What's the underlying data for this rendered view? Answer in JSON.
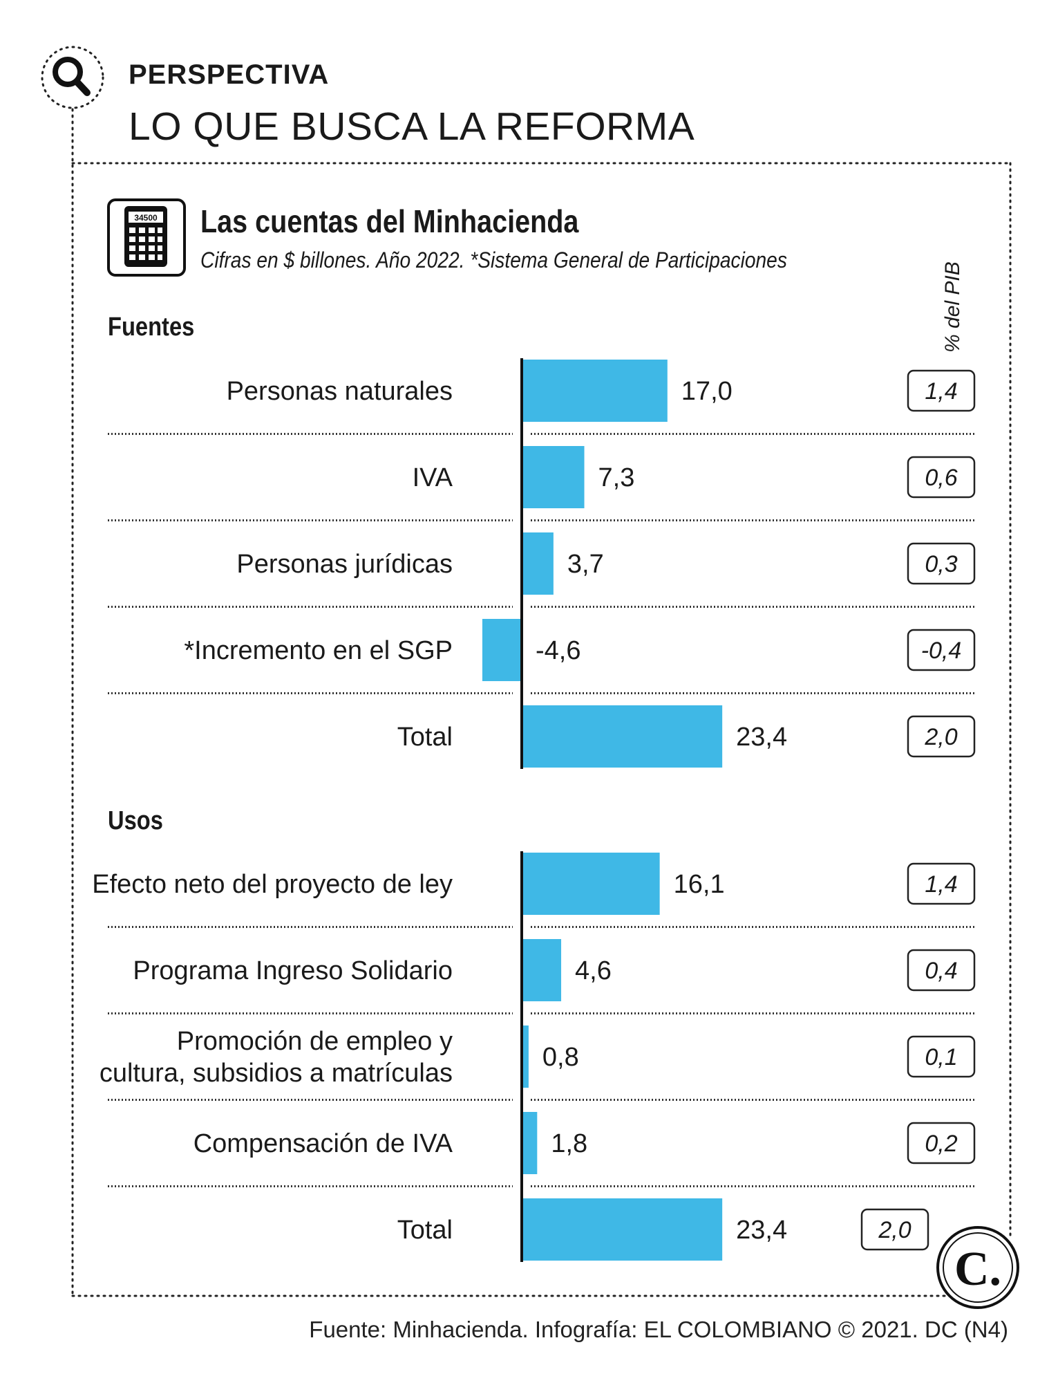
{
  "header": {
    "kicker": "PERSPECTIVA",
    "headline": "LO QUE BUSCA LA REFORMA"
  },
  "card": {
    "title": "Las cuentas del Minhacienda",
    "subtitle": "Cifras en $ billones. Año 2022.  *Sistema General de Participaciones",
    "calculator_display": "34500",
    "pib_header": "% del PIB"
  },
  "colors": {
    "bar": "#3fb8e6",
    "negative_text": "#d0262a",
    "text": "#1a1a1a",
    "frame": "#222222"
  },
  "chart_data": {
    "type": "bar",
    "orientation": "horizontal",
    "title": "Las cuentas del Minhacienda",
    "unit": "$ billones",
    "groups": [
      {
        "name": "Fuentes",
        "categories": [
          "Personas naturales",
          "IVA",
          "Personas jurídicas",
          "*Incremento en el SGP",
          "Total"
        ],
        "values": [
          17.0,
          7.3,
          3.7,
          -4.6,
          23.4
        ],
        "value_labels": [
          "17,0",
          "7,3",
          "3,7",
          "-4,6",
          "23,4"
        ],
        "pib_percent": [
          "1,4",
          "0,6",
          "0,3",
          "-0,4",
          "2,0"
        ]
      },
      {
        "name": "Usos",
        "categories": [
          "Efecto neto del proyecto de ley",
          "Programa Ingreso Solidario",
          "Promoción de empleo y\ncultura, subsidios a matrículas",
          "Compensación de IVA",
          "Total"
        ],
        "values": [
          16.1,
          4.6,
          0.8,
          1.8,
          23.4
        ],
        "value_labels": [
          "16,1",
          "4,6",
          "0,8",
          "1,8",
          "23,4"
        ],
        "pib_percent": [
          "1,4",
          "0,4",
          "0,1",
          "0,2",
          "2,0"
        ]
      }
    ],
    "series_label": "% del PIB"
  },
  "logo": {
    "mark": "C."
  },
  "footer": {
    "source": "Fuente: Minhacienda. Infografía: EL COLOMBIANO © 2021. DC (N4)"
  }
}
